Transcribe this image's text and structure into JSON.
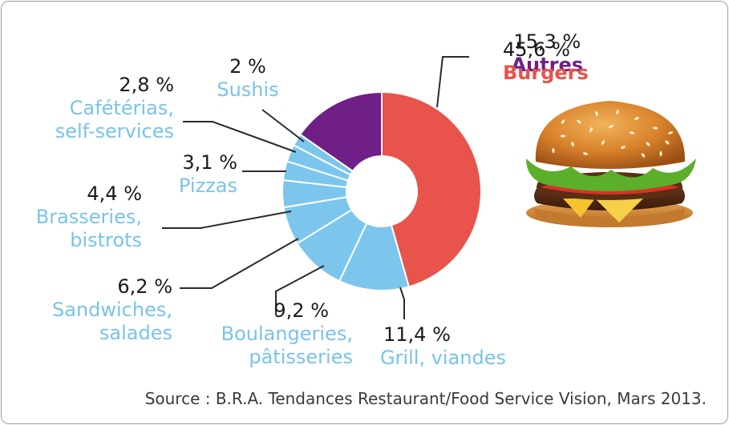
{
  "chart_data": {
    "type": "pie",
    "style": "donut",
    "slices": [
      {
        "label": "Burgers",
        "percent_label": "45,6 %",
        "value": 45.6,
        "color": "#e8534b"
      },
      {
        "label": "Grill, viandes",
        "percent_label": "11,4 %",
        "value": 11.4,
        "color": "#7cc6ee"
      },
      {
        "label": "Boulangeries, pâtisseries",
        "line1": "Boulangeries,",
        "line2": "pâtisseries",
        "percent_label": "9,2 %",
        "value": 9.2,
        "color": "#7cc6ee"
      },
      {
        "label": "Sandwiches, salades",
        "line1": "Sandwiches,",
        "line2": "salades",
        "percent_label": "6,2 %",
        "value": 6.2,
        "color": "#7cc6ee"
      },
      {
        "label": "Brasseries, bistrots",
        "line1": "Brasseries,",
        "line2": "bistrots",
        "percent_label": "4,4 %",
        "value": 4.4,
        "color": "#7cc6ee"
      },
      {
        "label": "Pizzas",
        "percent_label": "3,1 %",
        "value": 3.1,
        "color": "#7cc6ee"
      },
      {
        "label": "Cafétérias, self-services",
        "line1": "Cafétérias,",
        "line2": "self-services",
        "percent_label": "2,8 %",
        "value": 2.8,
        "color": "#7cc6ee"
      },
      {
        "label": "Sushis",
        "percent_label": "2 %",
        "value": 2.0,
        "color": "#7cc6ee"
      },
      {
        "label": "Autres",
        "percent_label": "15,3 %",
        "value": 15.3,
        "color": "#6f1f86"
      }
    ],
    "source": "Source : B.R.A. Tendances Restaurant/Food Service Vision, Mars 2013."
  },
  "colors": {
    "burgers_text": "#e8534b",
    "autres_text": "#6f1f86",
    "other_text": "#79c3ea",
    "percent_text": "#1a1a1a",
    "leader": "#2b2b2b"
  },
  "illustration": "hamburger-image"
}
